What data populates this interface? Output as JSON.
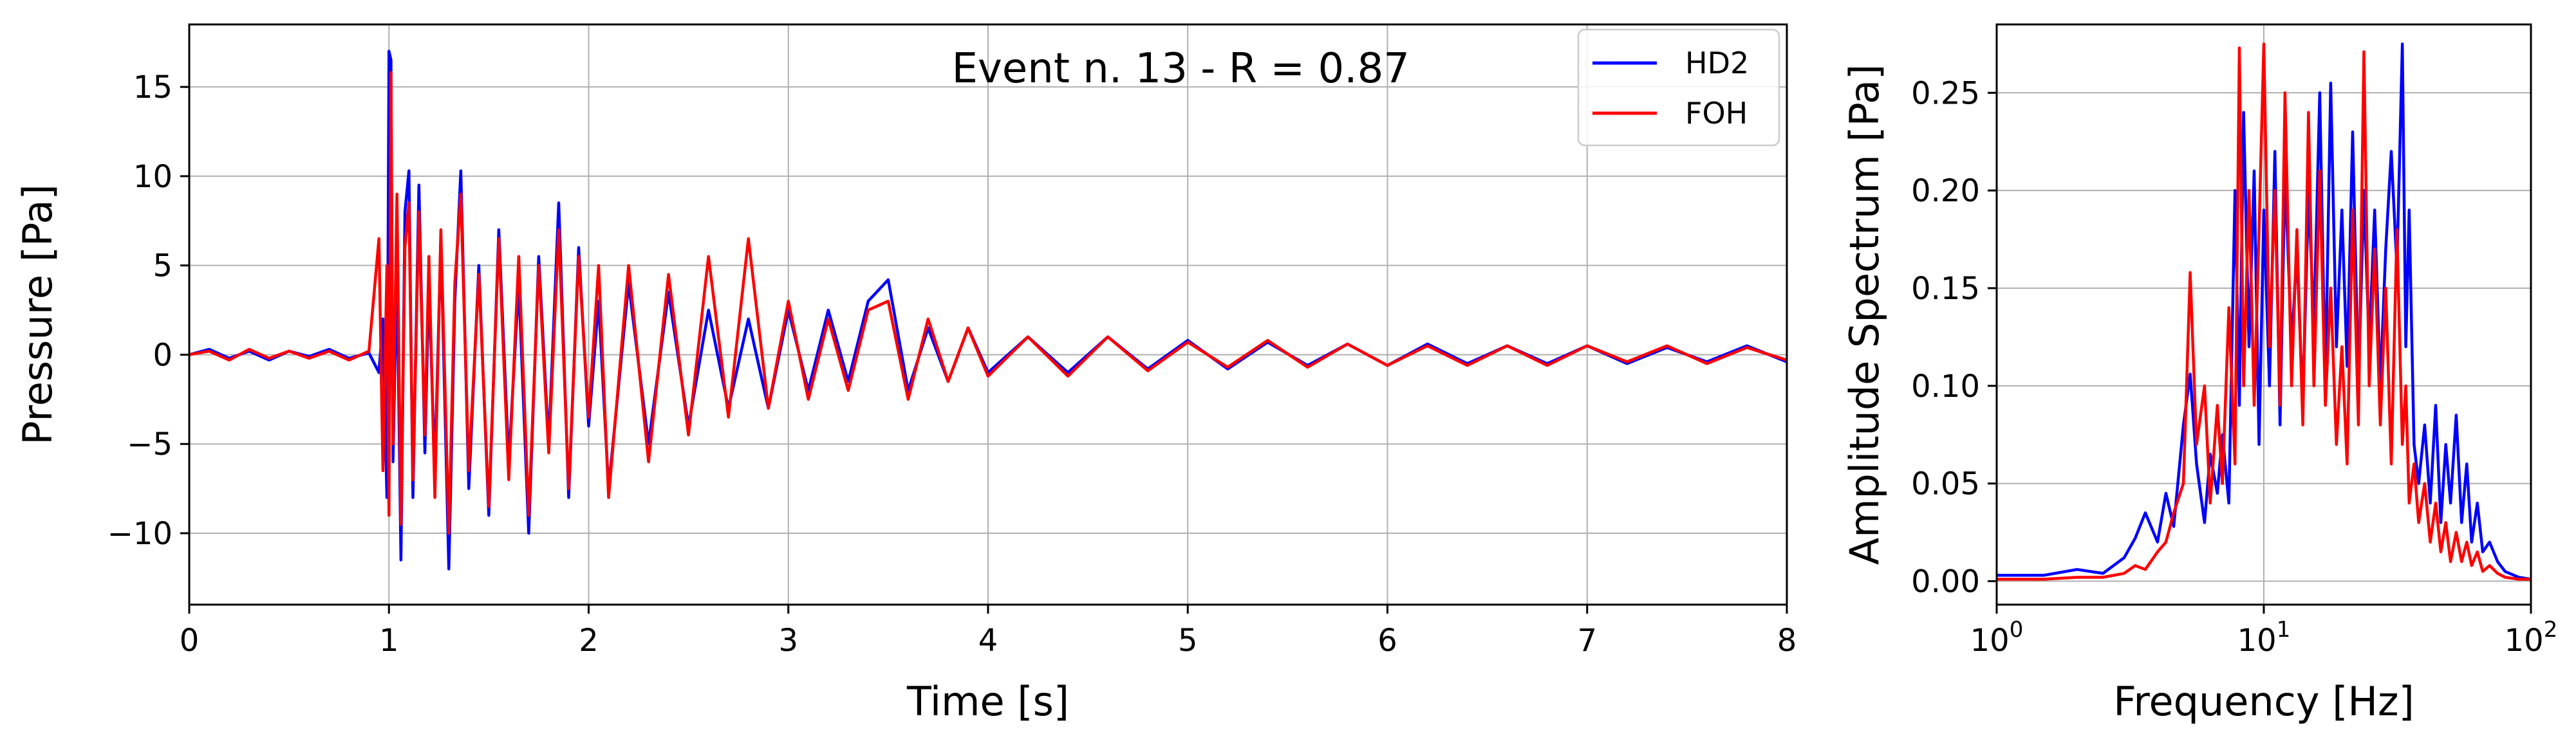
{
  "chart_data": [
    {
      "type": "line",
      "xlabel": "Time [s]",
      "ylabel": "Pressure [Pa]",
      "xlim": [
        0,
        8
      ],
      "ylim": [
        -14,
        18.5
      ],
      "grid": true,
      "x_ticks": [
        0,
        1,
        2,
        3,
        4,
        5,
        6,
        7,
        8
      ],
      "x_tick_labels": [
        "0",
        "1",
        "2",
        "3",
        "4",
        "5",
        "6",
        "7",
        "8"
      ],
      "y_ticks": [
        -10,
        -5,
        0,
        5,
        10,
        15
      ],
      "y_tick_labels": [
        "−10",
        "−5",
        "0",
        "5",
        "10",
        "15"
      ],
      "annotation": "Event n. 13 - R = 0.87",
      "legend": {
        "position": "top-right",
        "entries": [
          "HD2",
          "FOH"
        ]
      },
      "series": [
        {
          "name": "HD2",
          "color": "#0000ff",
          "x": [
            0.0,
            0.1,
            0.2,
            0.3,
            0.4,
            0.5,
            0.6,
            0.7,
            0.8,
            0.9,
            0.95,
            0.97,
            0.99,
            1.0,
            1.01,
            1.02,
            1.04,
            1.06,
            1.08,
            1.1,
            1.12,
            1.15,
            1.18,
            1.2,
            1.23,
            1.26,
            1.3,
            1.33,
            1.36,
            1.4,
            1.45,
            1.5,
            1.55,
            1.6,
            1.65,
            1.7,
            1.75,
            1.8,
            1.85,
            1.9,
            1.95,
            2.0,
            2.05,
            2.1,
            2.2,
            2.3,
            2.4,
            2.5,
            2.6,
            2.7,
            2.8,
            2.9,
            3.0,
            3.1,
            3.2,
            3.3,
            3.4,
            3.5,
            3.6,
            3.7,
            3.8,
            3.9,
            4.0,
            4.2,
            4.4,
            4.6,
            4.8,
            5.0,
            5.2,
            5.4,
            5.6,
            5.8,
            6.0,
            6.2,
            6.4,
            6.6,
            6.8,
            7.0,
            7.2,
            7.4,
            7.6,
            7.8,
            8.0
          ],
          "y": [
            0.0,
            0.3,
            -0.2,
            0.2,
            -0.3,
            0.2,
            -0.1,
            0.3,
            -0.2,
            0.1,
            -1.0,
            2.0,
            -8.0,
            17.0,
            16.5,
            -6.0,
            5.0,
            -11.5,
            8.0,
            10.3,
            -8.0,
            9.5,
            -5.5,
            4.0,
            -6.5,
            6.5,
            -12.0,
            3.0,
            10.3,
            -7.5,
            5.0,
            -9.0,
            7.0,
            -6.0,
            4.0,
            -10.0,
            5.5,
            -5.0,
            8.5,
            -8.0,
            6.0,
            -4.0,
            3.0,
            -7.5,
            4.0,
            -5.0,
            3.5,
            -4.0,
            2.5,
            -3.0,
            2.0,
            -3.0,
            2.5,
            -2.0,
            2.5,
            -1.5,
            3.0,
            4.2,
            -2.0,
            1.5,
            -1.5,
            1.5,
            -1.0,
            1.0,
            -1.0,
            1.0,
            -0.8,
            0.8,
            -0.8,
            0.7,
            -0.6,
            0.6,
            -0.6,
            0.6,
            -0.5,
            0.5,
            -0.5,
            0.5,
            -0.5,
            0.4,
            -0.4,
            0.5,
            -0.4
          ]
        },
        {
          "name": "FOH",
          "color": "#ff0000",
          "x": [
            0.0,
            0.1,
            0.2,
            0.3,
            0.4,
            0.5,
            0.6,
            0.7,
            0.8,
            0.9,
            0.95,
            0.97,
            0.99,
            1.0,
            1.01,
            1.02,
            1.04,
            1.06,
            1.08,
            1.1,
            1.12,
            1.15,
            1.18,
            1.2,
            1.23,
            1.26,
            1.3,
            1.33,
            1.36,
            1.4,
            1.45,
            1.5,
            1.55,
            1.6,
            1.65,
            1.7,
            1.75,
            1.8,
            1.85,
            1.9,
            1.95,
            2.0,
            2.05,
            2.1,
            2.2,
            2.3,
            2.4,
            2.5,
            2.6,
            2.7,
            2.8,
            2.9,
            3.0,
            3.1,
            3.2,
            3.3,
            3.4,
            3.5,
            3.6,
            3.7,
            3.8,
            3.9,
            4.0,
            4.2,
            4.4,
            4.6,
            4.8,
            5.0,
            5.2,
            5.4,
            5.6,
            5.8,
            6.0,
            6.2,
            6.4,
            6.6,
            6.8,
            7.0,
            7.2,
            7.4,
            7.6,
            7.8,
            8.0
          ],
          "y": [
            0.0,
            0.2,
            -0.3,
            0.3,
            -0.2,
            0.2,
            -0.2,
            0.2,
            -0.3,
            0.2,
            6.5,
            -6.5,
            5.0,
            -9.0,
            15.8,
            -5.0,
            9.0,
            -9.5,
            6.0,
            8.5,
            -7.0,
            8.0,
            -4.5,
            5.5,
            -8.0,
            7.0,
            -10.0,
            4.0,
            9.0,
            -6.5,
            4.5,
            -8.5,
            6.5,
            -7.0,
            5.5,
            -9.0,
            5.0,
            -5.5,
            7.0,
            -7.5,
            5.5,
            -3.5,
            5.0,
            -8.0,
            5.0,
            -6.0,
            4.5,
            -4.5,
            5.5,
            -3.5,
            6.5,
            -3.0,
            3.0,
            -2.5,
            2.0,
            -2.0,
            2.5,
            3.0,
            -2.5,
            2.0,
            -1.5,
            1.5,
            -1.2,
            1.0,
            -1.2,
            1.0,
            -0.9,
            0.7,
            -0.7,
            0.8,
            -0.7,
            0.6,
            -0.6,
            0.5,
            -0.6,
            0.5,
            -0.6,
            0.5,
            -0.4,
            0.5,
            -0.5,
            0.4,
            -0.3
          ]
        }
      ]
    },
    {
      "type": "line",
      "xlabel": "Frequency [Hz]",
      "ylabel": "Amplitude Spectrum [Pa]",
      "xscale": "log",
      "xlim": [
        1,
        100
      ],
      "ylim": [
        -0.012,
        0.285
      ],
      "grid": true,
      "x_ticks": [
        1,
        10,
        100
      ],
      "x_tick_labels": [
        {
          "base": "10",
          "exp": "0"
        },
        {
          "base": "10",
          "exp": "1"
        },
        {
          "base": "10",
          "exp": "2"
        }
      ],
      "y_ticks": [
        0.0,
        0.05,
        0.1,
        0.15,
        0.2,
        0.25
      ],
      "y_tick_labels": [
        "0.00",
        "0.05",
        "0.10",
        "0.15",
        "0.20",
        "0.25"
      ],
      "series": [
        {
          "name": "HD2",
          "color": "#0000ff",
          "x": [
            1.0,
            1.5,
            2.0,
            2.5,
            3.0,
            3.3,
            3.6,
            4.0,
            4.3,
            4.6,
            5.0,
            5.3,
            5.6,
            6.0,
            6.3,
            6.7,
            7.0,
            7.4,
            7.8,
            8.1,
            8.4,
            8.8,
            9.2,
            9.6,
            10.0,
            10.5,
            11.0,
            11.5,
            12.0,
            12.7,
            13.3,
            14.0,
            14.7,
            15.4,
            16.2,
            17.0,
            17.8,
            18.7,
            19.6,
            20.5,
            21.5,
            22.6,
            23.7,
            24.8,
            26.0,
            27.3,
            28.6,
            30.0,
            31.5,
            33.0,
            34.0,
            35.0,
            36.5,
            38.0,
            40.0,
            42.0,
            44.0,
            46.0,
            48.0,
            50.0,
            52.5,
            55.0,
            57.5,
            60.0,
            63.0,
            66.0,
            70.0,
            75.0,
            80.0,
            90.0,
            100.0
          ],
          "y": [
            0.003,
            0.003,
            0.006,
            0.004,
            0.012,
            0.022,
            0.035,
            0.02,
            0.045,
            0.028,
            0.08,
            0.106,
            0.06,
            0.03,
            0.065,
            0.045,
            0.075,
            0.04,
            0.2,
            0.09,
            0.24,
            0.12,
            0.21,
            0.07,
            0.19,
            0.1,
            0.22,
            0.08,
            0.21,
            0.12,
            0.17,
            0.09,
            0.2,
            0.13,
            0.25,
            0.1,
            0.255,
            0.12,
            0.19,
            0.11,
            0.23,
            0.1,
            0.2,
            0.12,
            0.19,
            0.1,
            0.17,
            0.22,
            0.16,
            0.275,
            0.12,
            0.19,
            0.07,
            0.05,
            0.08,
            0.04,
            0.09,
            0.03,
            0.07,
            0.04,
            0.085,
            0.03,
            0.06,
            0.02,
            0.04,
            0.015,
            0.02,
            0.01,
            0.005,
            0.002,
            0.001
          ]
        },
        {
          "name": "FOH",
          "color": "#ff0000",
          "x": [
            1.0,
            1.5,
            2.0,
            2.5,
            3.0,
            3.3,
            3.6,
            4.0,
            4.3,
            4.6,
            5.0,
            5.3,
            5.6,
            6.0,
            6.3,
            6.7,
            7.0,
            7.4,
            7.8,
            8.1,
            8.4,
            8.8,
            9.2,
            9.6,
            10.0,
            10.5,
            11.0,
            11.5,
            12.0,
            12.7,
            13.3,
            14.0,
            14.7,
            15.4,
            16.2,
            17.0,
            17.8,
            18.7,
            19.6,
            20.5,
            21.5,
            22.6,
            23.7,
            24.8,
            26.0,
            27.3,
            28.6,
            30.0,
            31.5,
            33.0,
            34.0,
            35.0,
            36.5,
            38.0,
            40.0,
            42.0,
            44.0,
            46.0,
            48.0,
            50.0,
            52.5,
            55.0,
            57.5,
            60.0,
            63.0,
            66.0,
            70.0,
            75.0,
            80.0,
            90.0,
            100.0
          ],
          "y": [
            0.001,
            0.001,
            0.002,
            0.002,
            0.004,
            0.008,
            0.006,
            0.015,
            0.02,
            0.035,
            0.05,
            0.158,
            0.07,
            0.1,
            0.04,
            0.09,
            0.05,
            0.14,
            0.06,
            0.273,
            0.1,
            0.2,
            0.09,
            0.18,
            0.275,
            0.12,
            0.2,
            0.09,
            0.25,
            0.1,
            0.18,
            0.08,
            0.24,
            0.1,
            0.21,
            0.09,
            0.15,
            0.07,
            0.12,
            0.06,
            0.19,
            0.08,
            0.271,
            0.1,
            0.17,
            0.08,
            0.15,
            0.06,
            0.18,
            0.07,
            0.1,
            0.04,
            0.06,
            0.03,
            0.05,
            0.02,
            0.04,
            0.015,
            0.03,
            0.01,
            0.025,
            0.01,
            0.02,
            0.008,
            0.015,
            0.005,
            0.008,
            0.004,
            0.002,
            0.001,
            0.001
          ]
        }
      ]
    }
  ]
}
